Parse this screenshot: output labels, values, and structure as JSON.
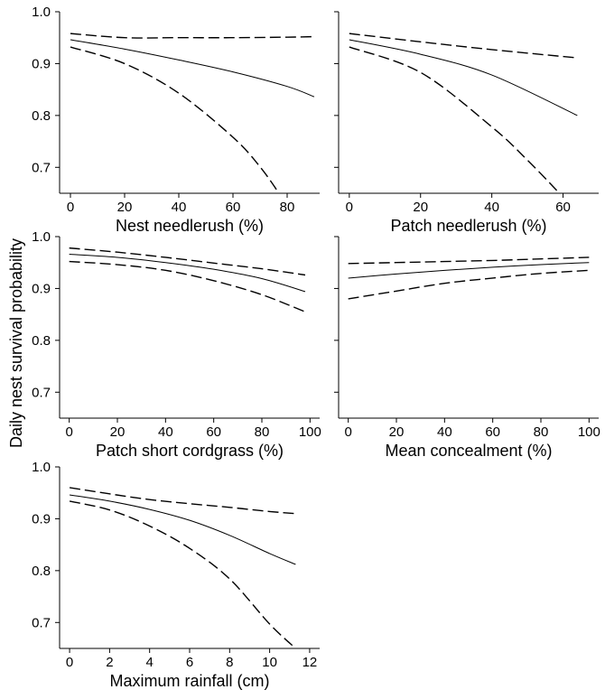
{
  "figure": {
    "ylabel": "Daily nest survival probability"
  },
  "chart_data": [
    {
      "type": "line",
      "xlabel": "Nest needlerush (%)",
      "xlim": [
        -4,
        92
      ],
      "xticks": [
        0,
        20,
        40,
        60,
        80
      ],
      "ylim": [
        0.65,
        1.0
      ],
      "yticks": [
        0.7,
        0.8,
        0.9,
        1.0
      ],
      "ytick_labels": [
        "0.7",
        "0.8",
        "0.9",
        "1.0"
      ],
      "series": [
        {
          "style": "solid",
          "x": [
            0,
            20,
            40,
            60,
            80,
            90
          ],
          "y": [
            0.946,
            0.928,
            0.907,
            0.884,
            0.856,
            0.836
          ]
        },
        {
          "style": "dashed",
          "x": [
            0,
            20,
            40,
            60,
            80,
            90
          ],
          "y": [
            0.958,
            0.95,
            0.95,
            0.95,
            0.951,
            0.952
          ]
        },
        {
          "style": "dashed",
          "x": [
            0,
            20,
            40,
            60,
            70,
            77
          ],
          "y": [
            0.932,
            0.9,
            0.843,
            0.758,
            0.701,
            0.65
          ]
        }
      ]
    },
    {
      "type": "line",
      "xlabel": "Patch needlerush (%)",
      "xlim": [
        -3,
        70
      ],
      "xticks": [
        0,
        20,
        40,
        60
      ],
      "ylim": [
        0.65,
        1.0
      ],
      "yticks": [
        0.7,
        0.8,
        0.9,
        1.0
      ],
      "ytick_labels": [
        "",
        "",
        "",
        ""
      ],
      "series": [
        {
          "style": "solid",
          "x": [
            0,
            20,
            40,
            64
          ],
          "y": [
            0.946,
            0.918,
            0.878,
            0.8
          ]
        },
        {
          "style": "dashed",
          "x": [
            0,
            20,
            40,
            64
          ],
          "y": [
            0.958,
            0.942,
            0.927,
            0.911
          ]
        },
        {
          "style": "dashed",
          "x": [
            0,
            20,
            40,
            50,
            59
          ],
          "y": [
            0.932,
            0.883,
            0.778,
            0.714,
            0.65
          ]
        }
      ]
    },
    {
      "type": "line",
      "xlabel": "Patch short cordgrass (%)",
      "xlim": [
        -4,
        104
      ],
      "xticks": [
        0,
        20,
        40,
        60,
        80,
        100
      ],
      "ylim": [
        0.65,
        1.0
      ],
      "yticks": [
        0.7,
        0.8,
        0.9,
        1.0
      ],
      "ytick_labels": [
        "0.7",
        "0.8",
        "0.9",
        "1.0"
      ],
      "series": [
        {
          "style": "solid",
          "x": [
            0,
            20,
            40,
            60,
            80,
            98
          ],
          "y": [
            0.966,
            0.96,
            0.95,
            0.937,
            0.919,
            0.894
          ]
        },
        {
          "style": "dashed",
          "x": [
            0,
            20,
            40,
            60,
            80,
            98
          ],
          "y": [
            0.978,
            0.97,
            0.96,
            0.949,
            0.938,
            0.926
          ]
        },
        {
          "style": "dashed",
          "x": [
            0,
            20,
            40,
            60,
            80,
            98
          ],
          "y": [
            0.952,
            0.946,
            0.935,
            0.915,
            0.888,
            0.855
          ]
        }
      ]
    },
    {
      "type": "line",
      "xlabel": "Mean concealment (%)",
      "xlim": [
        -4,
        104
      ],
      "xticks": [
        0,
        20,
        40,
        60,
        80,
        100
      ],
      "ylim": [
        0.65,
        1.0
      ],
      "yticks": [
        0.7,
        0.8,
        0.9,
        1.0
      ],
      "ytick_labels": [
        "",
        "",
        "",
        ""
      ],
      "series": [
        {
          "style": "solid",
          "x": [
            0,
            20,
            40,
            60,
            80,
            100
          ],
          "y": [
            0.92,
            0.928,
            0.935,
            0.941,
            0.946,
            0.95
          ]
        },
        {
          "style": "dashed",
          "x": [
            0,
            20,
            40,
            60,
            80,
            100
          ],
          "y": [
            0.948,
            0.95,
            0.952,
            0.954,
            0.957,
            0.96
          ]
        },
        {
          "style": "dashed",
          "x": [
            0,
            20,
            40,
            60,
            80,
            100
          ],
          "y": [
            0.88,
            0.895,
            0.91,
            0.92,
            0.929,
            0.935
          ]
        }
      ]
    },
    {
      "type": "line",
      "xlabel": "Maximum rainfall (cm)",
      "xlim": [
        -0.5,
        12.5
      ],
      "xticks": [
        0,
        2,
        4,
        6,
        8,
        10,
        12
      ],
      "ylim": [
        0.65,
        1.0
      ],
      "yticks": [
        0.7,
        0.8,
        0.9,
        1.0
      ],
      "ytick_labels": [
        "0.7",
        "0.8",
        "0.9",
        "1.0"
      ],
      "series": [
        {
          "style": "solid",
          "x": [
            0,
            2,
            4,
            6,
            8,
            10,
            11.3
          ],
          "y": [
            0.946,
            0.934,
            0.918,
            0.897,
            0.868,
            0.833,
            0.812
          ]
        },
        {
          "style": "dashed",
          "x": [
            0,
            2,
            4,
            6,
            8,
            10,
            11.3
          ],
          "y": [
            0.96,
            0.948,
            0.937,
            0.929,
            0.922,
            0.914,
            0.91
          ]
        },
        {
          "style": "dashed",
          "x": [
            0,
            2,
            4,
            6,
            8,
            10,
            11.3
          ],
          "y": [
            0.934,
            0.917,
            0.886,
            0.843,
            0.784,
            0.697,
            0.65
          ]
        }
      ]
    }
  ]
}
